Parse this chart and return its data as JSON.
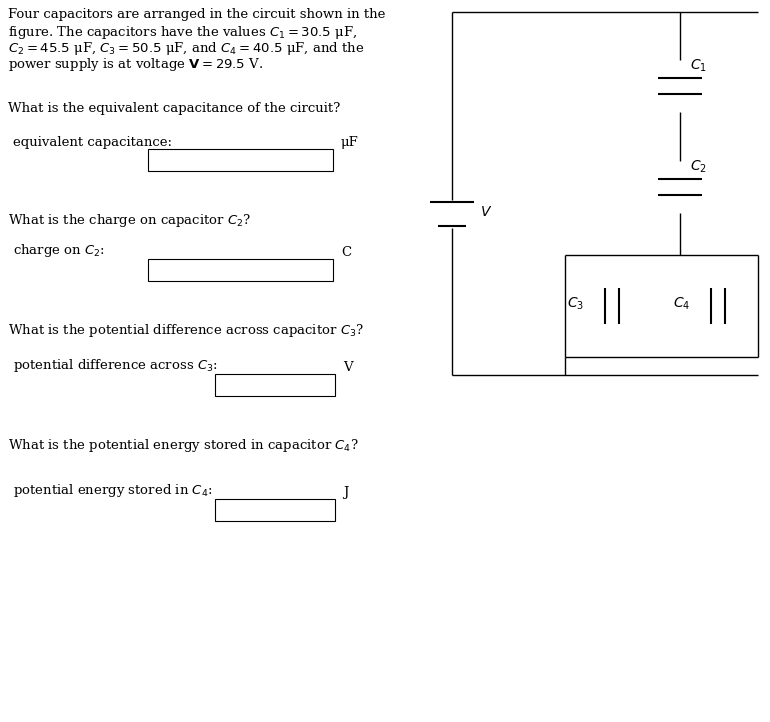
{
  "bg_color": "#ffffff",
  "text_color": "#000000",
  "fig_width": 7.7,
  "fig_height": 7.22,
  "dpi": 100,
  "problem_lines": [
    "Four capacitors are arranged in the circuit shown in the",
    "figure. The capacitors have the values $C_1 = 30.5$ μF,",
    "$C_2 = 45.5$ μF, $C_3 = 50.5$ μF, and $C_4 = 40.5$ μF, and the",
    "power supply is at voltage $\\mathbf{V} = 29.5$ V."
  ],
  "q1_text": "What is the equivalent capacitance of the circuit?",
  "q1_label": "equivalent capacitance:",
  "q1_unit": "μF",
  "q2_text": "What is the charge on capacitor $C_2$?",
  "q2_label": "charge on $C_2$:",
  "q2_unit": "C",
  "q3_text": "What is the potential difference across capacitor $C_3$?",
  "q3_label": "potential difference across $C_3$:",
  "q3_unit": "V",
  "q4_text": "What is the potential energy stored in capacitor $C_4$?",
  "q4_label": "potential energy stored in $C_4$:",
  "q4_unit": "J",
  "font_size": 9.5,
  "circuit_lw": 1.0,
  "cap_plate_lw": 1.5
}
